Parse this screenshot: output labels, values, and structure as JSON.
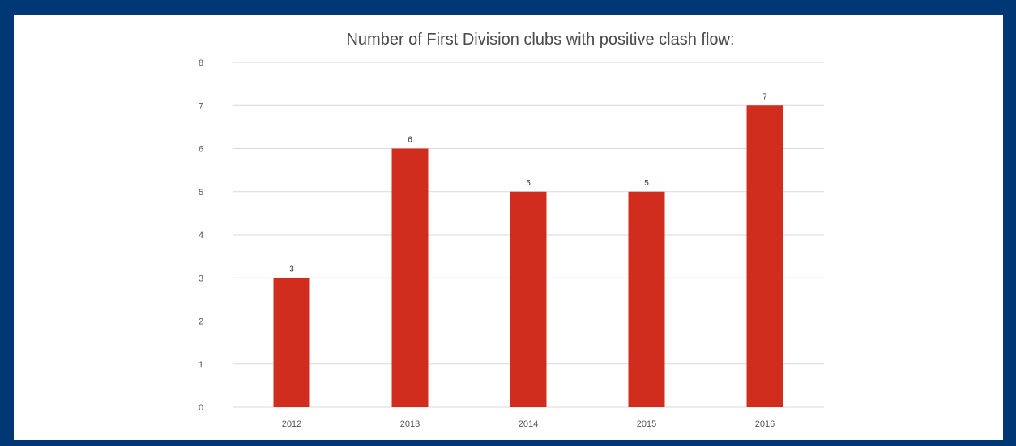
{
  "chart_data": {
    "type": "bar",
    "title": "Number of First Division clubs with positive clash flow:",
    "categories": [
      "2012",
      "2013",
      "2014",
      "2015",
      "2016"
    ],
    "values": [
      3,
      6,
      5,
      5,
      7
    ],
    "xlabel": "",
    "ylabel": "",
    "ylim": [
      0,
      8
    ],
    "yticks": [
      0,
      1,
      2,
      3,
      4,
      5,
      6,
      7,
      8
    ],
    "grid": true,
    "data_labels": true,
    "colors": {
      "bar": "#d12d1e",
      "frame": "#003876",
      "grid": "#d9d9d9",
      "background": "#ffffff"
    }
  }
}
